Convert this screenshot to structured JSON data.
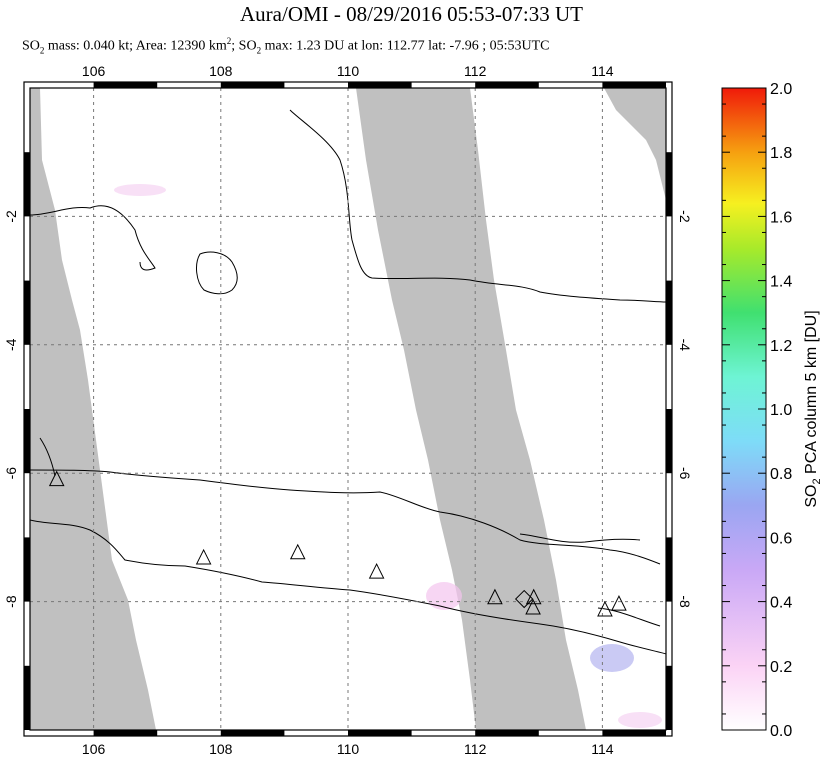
{
  "title": "Aura/OMI - 08/29/2016 05:53-07:33 UT",
  "subtitle": {
    "prefix": "SO",
    "mass_text": " mass: 0.040 kt; Area: 12390 km",
    "max_text": "; SO",
    "rest": " max: 1.23 DU at lon: 112.77 lat: -7.96 ; 05:53UTC"
  },
  "chart_data": {
    "type": "heatmap",
    "title": "Aura/OMI - 08/29/2016 05:53-07:33 UT",
    "x_ticks": [
      "106",
      "108",
      "110",
      "112",
      "114"
    ],
    "y_ticks": [
      "-2",
      "-4",
      "-6",
      "-8"
    ],
    "xlim": [
      105,
      115
    ],
    "ylim": [
      -10,
      0
    ],
    "colorbar": {
      "label_prefix": "SO",
      "label_sub": "2",
      "label_rest": " PCA column 5 km [DU]",
      "ticks": [
        "0.0",
        "0.2",
        "0.4",
        "0.6",
        "0.8",
        "1.0",
        "1.2",
        "1.4",
        "1.6",
        "1.8",
        "2.0"
      ],
      "range": [
        0,
        2
      ]
    },
    "max_value": {
      "value": 1.23,
      "lon": 112.77,
      "lat": -7.96
    },
    "volcanoes": [
      {
        "lon": 105.42,
        "lat": -6.1
      },
      {
        "lon": 107.73,
        "lat": -7.32
      },
      {
        "lon": 109.21,
        "lat": -7.24
      },
      {
        "lon": 110.45,
        "lat": -7.54
      },
      {
        "lon": 112.31,
        "lat": -7.94
      },
      {
        "lon": 112.92,
        "lat": -7.94
      },
      {
        "lon": 112.91,
        "lat": -8.1
      },
      {
        "lon": 114.04,
        "lat": -8.13
      },
      {
        "lon": 114.26,
        "lat": -8.04
      }
    ],
    "grid": true
  }
}
